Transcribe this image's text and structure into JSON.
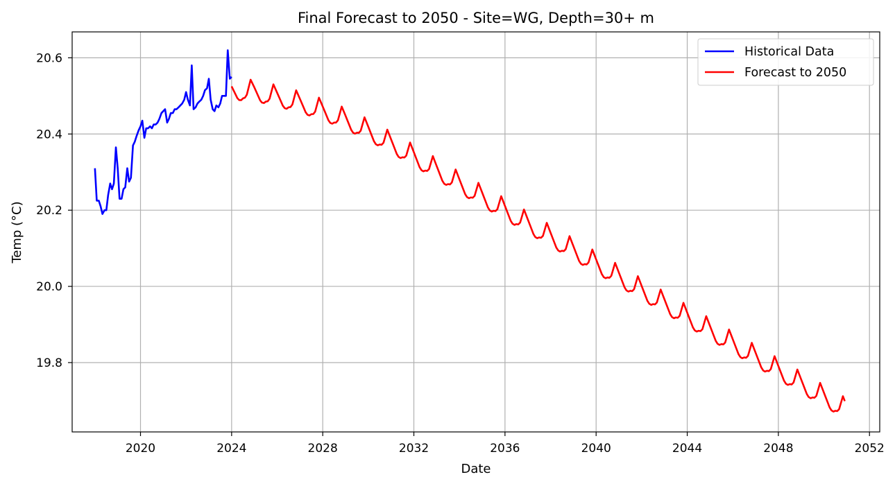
{
  "chart_data": {
    "type": "line",
    "title": "Final Forecast to 2050 - Site=WG, Depth=30+ m",
    "xlabel": "Date",
    "ylabel": "Temp (°C)",
    "xlim": [
      2017.0,
      2052.45
    ],
    "ylim": [
      19.618,
      20.668
    ],
    "x_ticks": [
      2020,
      2024,
      2028,
      2032,
      2036,
      2040,
      2044,
      2048,
      2052
    ],
    "x_tick_labels": [
      "2020",
      "2024",
      "2028",
      "2032",
      "2036",
      "2040",
      "2044",
      "2048",
      "2052"
    ],
    "y_ticks": [
      19.8,
      20.0,
      20.2,
      20.4,
      20.6
    ],
    "y_tick_labels": [
      "19.8",
      "20.0",
      "20.2",
      "20.4",
      "20.6"
    ],
    "grid": true,
    "legend_position": "top-right",
    "colors": {
      "historical": "#0000ff",
      "forecast": "#ff0000",
      "grid": "#b0b0b0",
      "axes": "#000000"
    },
    "series": [
      {
        "name": "Historical Data",
        "color": "#0000ff",
        "points": [
          [
            2018.0,
            20.31
          ],
          [
            2018.08,
            20.225
          ],
          [
            2018.17,
            20.225
          ],
          [
            2018.25,
            20.21
          ],
          [
            2018.33,
            20.19
          ],
          [
            2018.42,
            20.2
          ],
          [
            2018.5,
            20.2
          ],
          [
            2018.58,
            20.24
          ],
          [
            2018.67,
            20.27
          ],
          [
            2018.75,
            20.255
          ],
          [
            2018.83,
            20.27
          ],
          [
            2018.92,
            20.365
          ],
          [
            2019.0,
            20.31
          ],
          [
            2019.08,
            20.23
          ],
          [
            2019.17,
            20.23
          ],
          [
            2019.25,
            20.255
          ],
          [
            2019.33,
            20.26
          ],
          [
            2019.42,
            20.31
          ],
          [
            2019.5,
            20.275
          ],
          [
            2019.58,
            20.285
          ],
          [
            2019.67,
            20.37
          ],
          [
            2019.75,
            20.38
          ],
          [
            2019.83,
            20.395
          ],
          [
            2019.92,
            20.41
          ],
          [
            2020.0,
            20.42
          ],
          [
            2020.08,
            20.435
          ],
          [
            2020.17,
            20.39
          ],
          [
            2020.25,
            20.415
          ],
          [
            2020.33,
            20.415
          ],
          [
            2020.42,
            20.42
          ],
          [
            2020.5,
            20.415
          ],
          [
            2020.58,
            20.425
          ],
          [
            2020.67,
            20.425
          ],
          [
            2020.75,
            20.43
          ],
          [
            2020.83,
            20.44
          ],
          [
            2020.92,
            20.455
          ],
          [
            2021.0,
            20.46
          ],
          [
            2021.08,
            20.465
          ],
          [
            2021.17,
            20.43
          ],
          [
            2021.25,
            20.44
          ],
          [
            2021.33,
            20.455
          ],
          [
            2021.42,
            20.455
          ],
          [
            2021.5,
            20.465
          ],
          [
            2021.58,
            20.465
          ],
          [
            2021.67,
            20.47
          ],
          [
            2021.75,
            20.475
          ],
          [
            2021.83,
            20.48
          ],
          [
            2021.92,
            20.49
          ],
          [
            2022.0,
            20.51
          ],
          [
            2022.08,
            20.49
          ],
          [
            2022.17,
            20.475
          ],
          [
            2022.25,
            20.58
          ],
          [
            2022.33,
            20.465
          ],
          [
            2022.42,
            20.47
          ],
          [
            2022.5,
            20.48
          ],
          [
            2022.58,
            20.485
          ],
          [
            2022.67,
            20.49
          ],
          [
            2022.75,
            20.5
          ],
          [
            2022.83,
            20.515
          ],
          [
            2022.92,
            20.52
          ],
          [
            2023.0,
            20.545
          ],
          [
            2023.08,
            20.49
          ],
          [
            2023.17,
            20.465
          ],
          [
            2023.25,
            20.46
          ],
          [
            2023.33,
            20.475
          ],
          [
            2023.42,
            20.47
          ],
          [
            2023.5,
            20.48
          ],
          [
            2023.58,
            20.5
          ],
          [
            2023.67,
            20.5
          ],
          [
            2023.75,
            20.5
          ],
          [
            2023.83,
            20.62
          ],
          [
            2023.92,
            20.545
          ],
          [
            2024.0,
            20.55
          ]
        ]
      },
      {
        "name": "Forecast to 2050",
        "color": "#ff0000",
        "start": 2024.0,
        "step": 0.0833333,
        "anchors": [
          [
            2024.0,
            20.505
          ],
          [
            2025.0,
            20.502
          ],
          [
            2026.0,
            20.488
          ],
          [
            2027.0,
            20.472
          ],
          [
            2028.0,
            20.452
          ],
          [
            2029.0,
            20.428
          ],
          [
            2030.0,
            20.399
          ],
          [
            2031.0,
            20.366
          ],
          [
            2032.0,
            20.332
          ],
          [
            2033.0,
            20.296
          ],
          [
            2034.0,
            20.261
          ],
          [
            2035.0,
            20.226
          ],
          [
            2036.0,
            20.191
          ],
          [
            2037.0,
            20.156
          ],
          [
            2038.0,
            20.121
          ],
          [
            2039.0,
            20.086
          ],
          [
            2040.0,
            20.051
          ],
          [
            2041.0,
            20.016
          ],
          [
            2042.0,
            19.981
          ],
          [
            2043.0,
            19.946
          ],
          [
            2044.0,
            19.911
          ],
          [
            2045.0,
            19.876
          ],
          [
            2046.0,
            19.841
          ],
          [
            2047.0,
            19.806
          ],
          [
            2048.0,
            19.771
          ],
          [
            2049.0,
            19.736
          ],
          [
            2050.0,
            19.701
          ],
          [
            2051.0,
            19.666
          ]
        ],
        "seasonal": [
          0.02,
          0.01,
          0.0,
          -0.01,
          -0.015,
          -0.015,
          -0.01,
          -0.008,
          0.0,
          0.02,
          0.04,
          0.03
        ],
        "end": 2050.92
      }
    ]
  }
}
